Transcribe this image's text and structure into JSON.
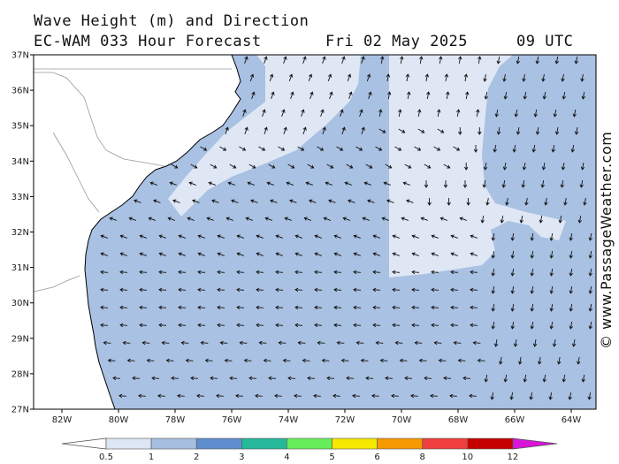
{
  "header": {
    "title": "Wave Height (m) and Direction",
    "subtitle": "EC-WAM 033 Hour Forecast",
    "date": "Fri 02 May 2025",
    "time": "09 UTC"
  },
  "credit": "© www.PassageWeather.com",
  "map": {
    "lat_labels": [
      "37N",
      "36N",
      "35N",
      "34N",
      "33N",
      "32N",
      "31N",
      "30N",
      "29N",
      "28N",
      "27N"
    ],
    "lon_labels": [
      "82W",
      "80W",
      "78W",
      "76W",
      "74W",
      "72W",
      "70W",
      "68W",
      "66W",
      "64W"
    ],
    "colors": {
      "land": "#ffffff",
      "wave_05_1": "#dfe7f5",
      "wave_1_2": "#a9c1e2",
      "coast": "#000000",
      "arrow": "#111111"
    }
  },
  "legend": {
    "labels": [
      "0.5",
      "1",
      "2",
      "3",
      "4",
      "5",
      "6",
      "8",
      "10",
      "12"
    ],
    "colors": [
      "#ffffff",
      "#dde6f4",
      "#a6bfe0",
      "#5f8ecf",
      "#27b89b",
      "#66ee5a",
      "#f7e800",
      "#f59a00",
      "#f03d3d",
      "#c60000",
      "#d815d8"
    ]
  }
}
